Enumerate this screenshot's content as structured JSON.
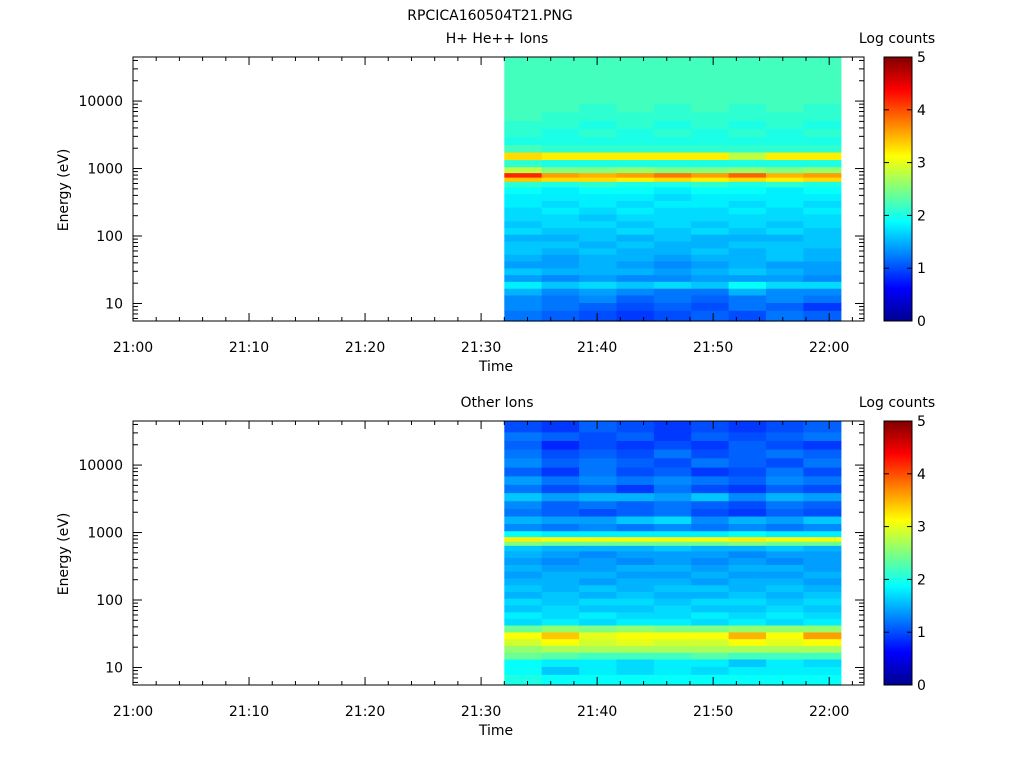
{
  "figure": {
    "title": "RPCICA160504T21.PNG"
  },
  "colormap": [
    "#00008f",
    "#0000ff",
    "#0080ff",
    "#00ffff",
    "#80ff80",
    "#ffff00",
    "#ff8000",
    "#ff0000",
    "#800000"
  ],
  "chart_data": [
    {
      "type": "heatmap",
      "title": "H+ He++ Ions",
      "xlabel": "Time",
      "ylabel": "Energy (eV)",
      "colorbar_label": "Log counts",
      "x_ticks": [
        "21:00",
        "21:10",
        "21:20",
        "21:30",
        "21:40",
        "21:50",
        "22:00"
      ],
      "y_ticks": [
        "10",
        "100",
        "1000",
        "10000"
      ],
      "y_scale": "log",
      "ylim": [
        5.5,
        45000
      ],
      "xlim": [
        "21:00",
        "22:03"
      ],
      "colorbar_ticks": [
        "0",
        "1",
        "2",
        "3",
        "4",
        "5"
      ],
      "clim": [
        0,
        5
      ],
      "data_time_start": "21:32",
      "data_time_end": "22:01",
      "time_bins": 9,
      "energy_bins_eV": [
        7,
        9,
        12,
        15,
        19,
        24,
        30,
        38,
        48,
        60,
        75,
        95,
        120,
        150,
        190,
        240,
        300,
        380,
        480,
        600,
        700,
        800,
        950,
        1200,
        1550,
        2000,
        2600,
        3400,
        4500,
        6000,
        8000,
        11000,
        15000,
        20000,
        27000,
        36000
      ],
      "log_counts": [
        [
          1.2,
          1.1,
          1.0,
          0.9,
          1.0,
          1.1,
          1.0,
          1.2,
          1.1
        ],
        [
          1.3,
          1.2,
          1.1,
          1.0,
          1.1,
          1.0,
          1.2,
          1.1,
          0.9
        ],
        [
          1.3,
          1.2,
          1.3,
          1.1,
          1.2,
          1.1,
          1.2,
          1.3,
          1.2
        ],
        [
          1.5,
          1.3,
          1.4,
          1.3,
          1.2,
          1.2,
          1.5,
          1.3,
          1.3
        ],
        [
          1.8,
          1.6,
          1.7,
          1.6,
          1.7,
          1.6,
          1.9,
          1.7,
          1.7
        ],
        [
          1.4,
          1.3,
          1.4,
          1.3,
          1.3,
          1.4,
          1.4,
          1.4,
          1.3
        ],
        [
          1.6,
          1.5,
          1.5,
          1.5,
          1.4,
          1.5,
          1.6,
          1.5,
          1.4
        ],
        [
          1.4,
          1.4,
          1.5,
          1.4,
          1.3,
          1.4,
          1.5,
          1.4,
          1.4
        ],
        [
          1.5,
          1.4,
          1.5,
          1.5,
          1.4,
          1.5,
          1.5,
          1.6,
          1.5
        ],
        [
          1.6,
          1.5,
          1.6,
          1.5,
          1.5,
          1.6,
          1.5,
          1.6,
          1.5
        ],
        [
          1.6,
          1.6,
          1.5,
          1.6,
          1.5,
          1.5,
          1.6,
          1.6,
          1.6
        ],
        [
          1.5,
          1.5,
          1.6,
          1.5,
          1.6,
          1.5,
          1.5,
          1.5,
          1.6
        ],
        [
          1.7,
          1.6,
          1.6,
          1.7,
          1.6,
          1.7,
          1.6,
          1.7,
          1.6
        ],
        [
          1.6,
          1.7,
          1.7,
          1.6,
          1.7,
          1.6,
          1.7,
          1.6,
          1.7
        ],
        [
          1.7,
          1.7,
          1.6,
          1.7,
          1.7,
          1.7,
          1.7,
          1.7,
          1.7
        ],
        [
          1.7,
          1.8,
          1.7,
          1.8,
          1.7,
          1.7,
          1.8,
          1.7,
          1.8
        ],
        [
          1.8,
          1.7,
          1.8,
          1.7,
          1.8,
          1.8,
          1.7,
          1.8,
          1.7
        ],
        [
          1.8,
          1.8,
          1.8,
          1.8,
          1.7,
          1.8,
          1.8,
          1.8,
          1.8
        ],
        [
          1.9,
          1.8,
          1.9,
          1.9,
          1.8,
          1.9,
          1.9,
          1.8,
          1.9
        ],
        [
          2.1,
          2.0,
          2.1,
          2.0,
          2.0,
          2.1,
          2.0,
          2.1,
          2.0
        ],
        [
          3.4,
          3.3,
          3.3,
          3.2,
          3.3,
          3.2,
          3.3,
          3.2,
          3.3
        ],
        [
          4.2,
          3.6,
          3.5,
          3.6,
          3.8,
          3.6,
          3.9,
          3.5,
          3.6
        ],
        [
          2.8,
          2.5,
          2.5,
          2.6,
          2.5,
          2.5,
          2.6,
          2.5,
          2.6
        ],
        [
          2.1,
          2.0,
          2.0,
          2.0,
          2.0,
          2.0,
          2.0,
          2.0,
          2.0
        ],
        [
          3.3,
          3.2,
          3.2,
          3.2,
          3.2,
          3.2,
          2.8,
          3.2,
          3.2
        ],
        [
          2.2,
          2.1,
          2.1,
          2.1,
          2.1,
          2.1,
          2.1,
          2.1,
          2.1
        ],
        [
          2.0,
          2.0,
          2.0,
          2.0,
          2.0,
          2.0,
          2.0,
          2.0,
          2.0
        ],
        [
          2.1,
          2.0,
          2.1,
          2.0,
          2.1,
          2.0,
          2.1,
          2.0,
          2.1
        ],
        [
          2.1,
          2.1,
          2.0,
          2.1,
          2.0,
          2.1,
          2.0,
          2.1,
          2.0
        ],
        [
          2.2,
          2.1,
          2.1,
          2.1,
          2.1,
          2.1,
          2.1,
          2.1,
          2.1
        ],
        [
          2.2,
          2.2,
          2.1,
          2.2,
          2.1,
          2.2,
          2.1,
          2.2,
          2.1
        ],
        [
          2.2,
          2.2,
          2.2,
          2.2,
          2.2,
          2.2,
          2.2,
          2.2,
          2.2
        ],
        [
          2.2,
          2.2,
          2.2,
          2.2,
          2.2,
          2.2,
          2.2,
          2.2,
          2.2
        ],
        [
          2.2,
          2.2,
          2.2,
          2.2,
          2.2,
          2.2,
          2.2,
          2.2,
          2.2
        ],
        [
          2.2,
          2.2,
          2.2,
          2.2,
          2.2,
          2.2,
          2.2,
          2.2,
          2.2
        ],
        [
          2.2,
          2.2,
          2.2,
          2.2,
          2.2,
          2.2,
          2.2,
          2.2,
          2.2
        ]
      ]
    },
    {
      "type": "heatmap",
      "title": "Other Ions",
      "xlabel": "Time",
      "ylabel": "Energy (eV)",
      "colorbar_label": "Log counts",
      "x_ticks": [
        "21:00",
        "21:10",
        "21:20",
        "21:30",
        "21:40",
        "21:50",
        "22:00"
      ],
      "y_ticks": [
        "10",
        "100",
        "1000",
        "10000"
      ],
      "y_scale": "log",
      "ylim": [
        5.5,
        45000
      ],
      "xlim": [
        "21:00",
        "22:03"
      ],
      "colorbar_ticks": [
        "0",
        "1",
        "2",
        "3",
        "4",
        "5"
      ],
      "clim": [
        0,
        5
      ],
      "data_time_start": "21:32",
      "data_time_end": "22:01",
      "time_bins": 9,
      "energy_bins_eV": [
        7,
        9,
        12,
        15,
        19,
        24,
        30,
        38,
        48,
        60,
        75,
        95,
        120,
        150,
        190,
        240,
        300,
        380,
        480,
        600,
        700,
        800,
        950,
        1200,
        1550,
        2000,
        2600,
        3400,
        4500,
        6000,
        8000,
        11000,
        15000,
        20000,
        27000,
        36000
      ],
      "log_counts": [
        [
          2.0,
          1.9,
          1.9,
          1.9,
          1.9,
          1.9,
          1.9,
          1.9,
          1.9
        ],
        [
          1.9,
          1.6,
          1.8,
          1.7,
          1.8,
          1.7,
          1.8,
          1.8,
          1.8
        ],
        [
          1.9,
          1.8,
          1.8,
          1.7,
          1.8,
          1.8,
          1.6,
          1.8,
          1.7
        ],
        [
          2.4,
          2.3,
          2.2,
          2.2,
          2.2,
          2.3,
          2.2,
          2.2,
          2.2
        ],
        [
          2.6,
          2.7,
          2.7,
          2.7,
          2.7,
          2.7,
          2.7,
          2.7,
          2.7
        ],
        [
          2.9,
          3.1,
          2.9,
          3.0,
          2.9,
          2.9,
          3.1,
          3.0,
          3.1
        ],
        [
          3.1,
          3.4,
          3.0,
          3.1,
          3.1,
          3.1,
          3.5,
          3.1,
          3.6
        ],
        [
          2.4,
          2.6,
          2.5,
          2.6,
          2.5,
          2.5,
          2.6,
          2.6,
          2.6
        ],
        [
          1.7,
          1.8,
          1.7,
          1.8,
          1.8,
          1.7,
          1.8,
          1.7,
          1.8
        ],
        [
          1.8,
          1.7,
          1.8,
          1.7,
          1.7,
          1.8,
          1.7,
          1.8,
          1.7
        ],
        [
          1.6,
          1.7,
          1.6,
          1.6,
          1.7,
          1.6,
          1.6,
          1.7,
          1.6
        ],
        [
          1.7,
          1.6,
          1.7,
          1.7,
          1.6,
          1.7,
          1.7,
          1.6,
          1.7
        ],
        [
          1.5,
          1.6,
          1.5,
          1.6,
          1.5,
          1.5,
          1.6,
          1.5,
          1.6
        ],
        [
          1.6,
          1.5,
          1.6,
          1.5,
          1.6,
          1.6,
          1.5,
          1.6,
          1.5
        ],
        [
          1.5,
          1.5,
          1.4,
          1.5,
          1.5,
          1.4,
          1.5,
          1.5,
          1.4
        ],
        [
          1.4,
          1.5,
          1.5,
          1.4,
          1.4,
          1.5,
          1.4,
          1.4,
          1.5
        ],
        [
          1.5,
          1.4,
          1.4,
          1.5,
          1.5,
          1.4,
          1.5,
          1.5,
          1.4
        ],
        [
          1.4,
          1.3,
          1.4,
          1.3,
          1.4,
          1.3,
          1.4,
          1.3,
          1.4
        ],
        [
          1.5,
          1.4,
          1.3,
          1.4,
          1.4,
          1.4,
          1.3,
          1.4,
          1.4
        ],
        [
          1.6,
          1.5,
          1.5,
          1.5,
          1.6,
          1.5,
          1.5,
          1.6,
          1.5
        ],
        [
          2.5,
          2.4,
          2.4,
          2.4,
          2.4,
          2.4,
          2.5,
          2.4,
          2.4
        ],
        [
          3.2,
          3.1,
          3.1,
          3.1,
          3.1,
          3.1,
          3.2,
          3.1,
          3.1
        ],
        [
          1.9,
          1.8,
          1.8,
          1.8,
          1.8,
          1.8,
          1.9,
          1.8,
          1.8
        ],
        [
          1.3,
          1.2,
          1.3,
          1.2,
          1.3,
          1.2,
          1.3,
          1.2,
          1.3
        ],
        [
          1.5,
          1.4,
          1.4,
          1.6,
          1.7,
          1.3,
          1.5,
          1.4,
          1.6
        ],
        [
          1.2,
          1.1,
          1.0,
          1.1,
          1.2,
          1.0,
          0.9,
          1.1,
          1.0
        ],
        [
          1.3,
          1.1,
          1.2,
          1.1,
          1.2,
          1.1,
          1.0,
          1.2,
          1.1
        ],
        [
          1.6,
          1.4,
          1.5,
          1.5,
          1.4,
          1.6,
          1.3,
          1.5,
          1.4
        ],
        [
          1.2,
          1.0,
          1.1,
          0.9,
          1.2,
          1.0,
          0.9,
          1.1,
          1.0
        ],
        [
          1.4,
          1.2,
          1.3,
          1.2,
          1.3,
          1.2,
          1.1,
          1.3,
          1.2
        ],
        [
          1.1,
          0.9,
          1.2,
          1.0,
          1.1,
          0.9,
          1.0,
          1.2,
          1.0
        ],
        [
          1.3,
          1.1,
          1.2,
          1.1,
          1.0,
          1.2,
          1.1,
          1.0,
          1.2
        ],
        [
          1.2,
          1.0,
          1.1,
          1.0,
          1.2,
          1.0,
          1.1,
          1.2,
          1.1
        ],
        [
          1.1,
          0.8,
          1.0,
          0.9,
          1.0,
          0.9,
          1.1,
          1.0,
          0.9
        ],
        [
          1.2,
          1.1,
          1.0,
          1.1,
          0.9,
          1.1,
          1.0,
          1.1,
          1.2
        ],
        [
          1.0,
          0.9,
          1.1,
          1.0,
          0.9,
          1.0,
          0.9,
          1.0,
          1.1
        ]
      ]
    }
  ]
}
